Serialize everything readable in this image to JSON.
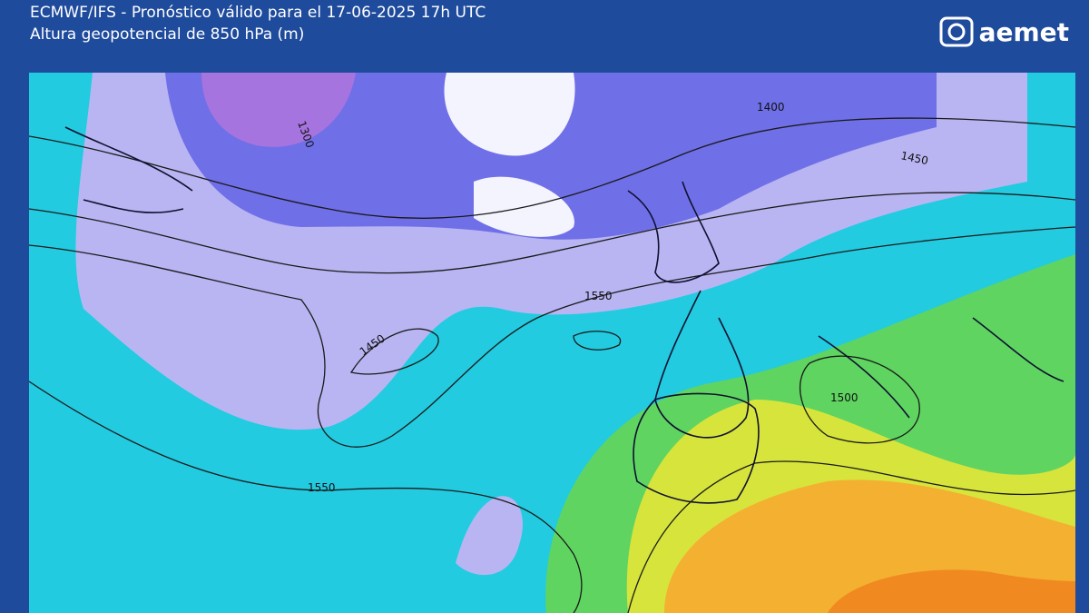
{
  "header": {
    "title": "ECMWF/IFS - Pronóstico válido para el 17-06-2025 17h UTC",
    "subtitle": "Altura geopotencial de 850 hPa (m)",
    "logo": "aemet"
  },
  "map": {
    "contour_labels": [
      "1300",
      "1400",
      "1450",
      "1450",
      "1550",
      "1550",
      "1500"
    ]
  }
}
